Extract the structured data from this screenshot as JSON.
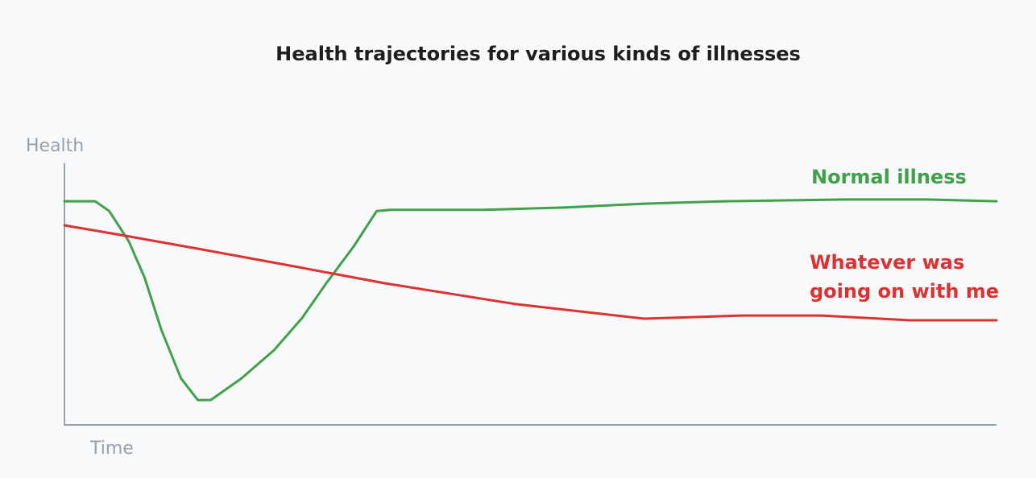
{
  "chart_data": {
    "type": "line",
    "title": "Health trajectories for various kinds of illnesses",
    "xlabel": "Time",
    "ylabel": "Health",
    "xlim": [
      0,
      100
    ],
    "ylim": [
      0,
      100
    ],
    "series": [
      {
        "name": "Normal illness",
        "color": "#40a14a",
        "x": [
          0,
          3.3,
          4.8,
          6.9,
          8.6,
          10.4,
          12.5,
          14.3,
          15.7,
          19.0,
          22.5,
          25.5,
          28.1,
          31.1,
          33.5,
          35.0,
          44.9,
          53.6,
          62.2,
          70.9,
          83.8,
          92.5,
          100
        ],
        "values": [
          85.5,
          85.5,
          81.8,
          70.2,
          56.3,
          36.3,
          17.8,
          9.5,
          9.5,
          17.8,
          28.6,
          40.9,
          54.2,
          68.6,
          81.8,
          82.2,
          82.2,
          83.1,
          84.6,
          85.5,
          86.2,
          86.2,
          85.5
        ]
      },
      {
        "name": "Whatever was going on with me",
        "color": "#dc3232",
        "x": [
          0,
          6.1,
          14.7,
          23.3,
          34.3,
          48.4,
          62.2,
          72.6,
          81.2,
          90.7,
          100
        ],
        "values": [
          76.3,
          72.6,
          67.1,
          61.5,
          54.2,
          46.2,
          40.6,
          41.8,
          41.8,
          40.0,
          40.0
        ]
      }
    ]
  }
}
